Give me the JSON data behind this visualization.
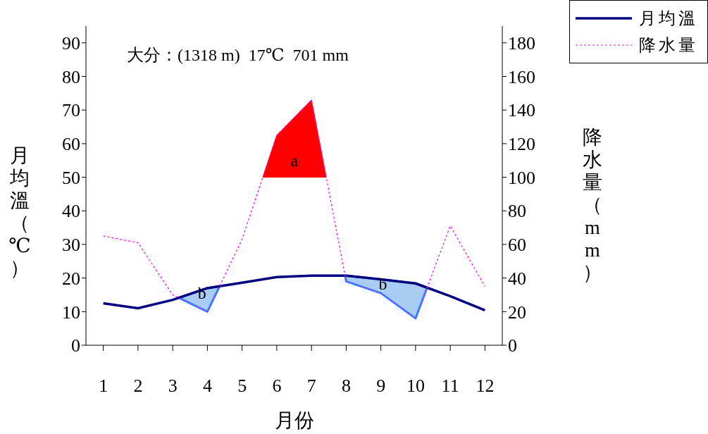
{
  "chart_data": {
    "type": "line",
    "title": "大分：(1318 m)  17℃  701 mm",
    "xlabel": "月份",
    "ylabel": "月均溫（℃）",
    "y2label": "降水量（mm）",
    "x": [
      1,
      2,
      3,
      4,
      5,
      6,
      7,
      8,
      9,
      10,
      11,
      12
    ],
    "xlim": [
      0.5,
      12.5
    ],
    "xticks": [
      1,
      2,
      3,
      4,
      5,
      6,
      7,
      8,
      9,
      10,
      11,
      12
    ],
    "ylim": [
      0,
      95
    ],
    "yticks": [
      0,
      10,
      20,
      30,
      40,
      50,
      60,
      70,
      80,
      90
    ],
    "y2lim": [
      0,
      190
    ],
    "y2ticks": [
      0,
      20,
      40,
      60,
      80,
      100,
      120,
      140,
      160,
      180
    ],
    "series": [
      {
        "name": "月均溫",
        "color": "#000080",
        "line_style": "solid",
        "values": [
          12.5,
          11,
          13.5,
          17,
          18.6,
          20.3,
          20.7,
          20.7,
          19.6,
          18.4,
          14.6,
          10.4
        ]
      },
      {
        "name": "降水量",
        "axis": "y2",
        "color": "#ff00ff",
        "line_style": "dotted",
        "values": [
          65,
          61,
          30,
          20,
          63,
          125,
          146,
          38,
          31,
          16,
          71,
          35
        ]
      }
    ],
    "annotations": [
      "a",
      "b",
      "b"
    ],
    "legend": "top right",
    "marker": "none"
  }
}
